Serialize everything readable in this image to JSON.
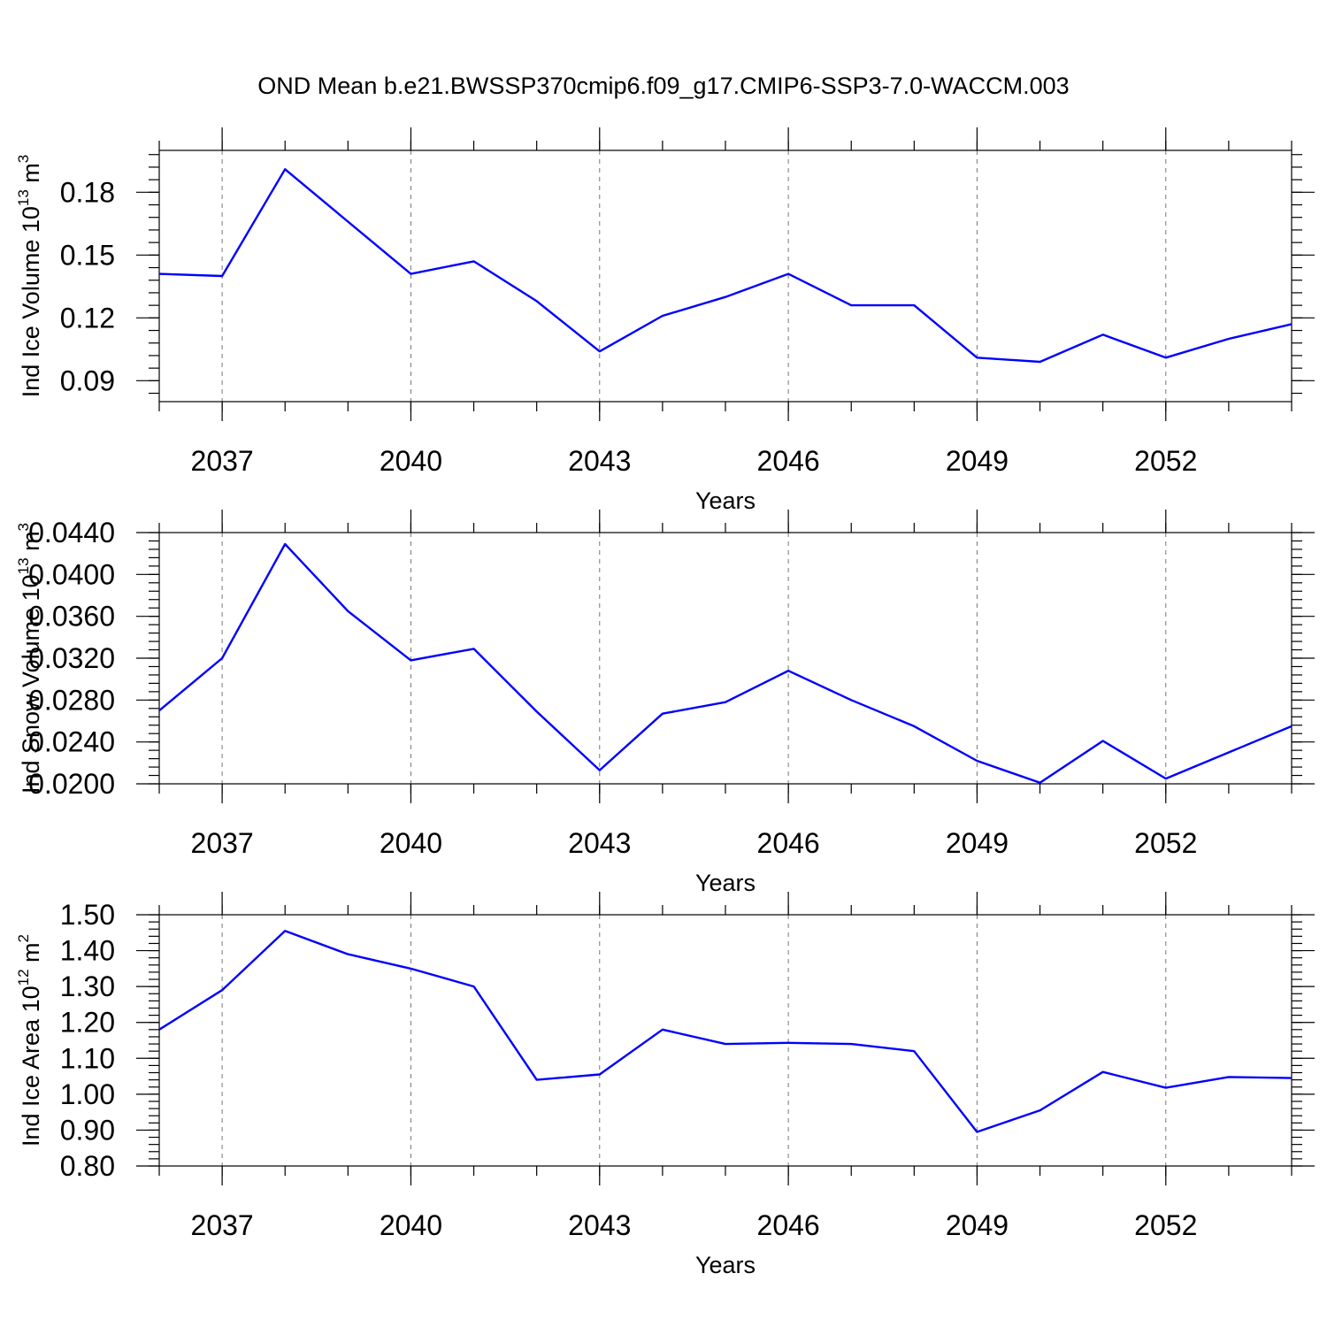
{
  "chart_data": {
    "title": "OND Mean b.e21.BWSSP370cmip6.f09_g17.CMIP6-SSP3-7.0-WACCM.003",
    "panels": [
      {
        "type": "line",
        "xlabel": "Years",
        "ylabel_text": "Ind Ice Volume 10",
        "ylabel_exp": "13",
        "ylabel_unit": " m",
        "ylabel_unit_exp": "3",
        "xlim": [
          2036,
          2054
        ],
        "ylim": [
          0.08,
          0.2
        ],
        "grid": true,
        "line_color": "#0000ff",
        "xticks": [
          2037,
          2040,
          2043,
          2046,
          2049,
          2052
        ],
        "xtick_labels": [
          "2037",
          "2040",
          "2043",
          "2046",
          "2049",
          "2052"
        ],
        "yticks": [
          0.09,
          0.12,
          0.15,
          0.18
        ],
        "ytick_labels": [
          "0.09",
          "0.12",
          "0.15",
          "0.18"
        ],
        "x": [
          2036,
          2037,
          2038,
          2039,
          2040,
          2041,
          2042,
          2043,
          2044,
          2045,
          2046,
          2047,
          2048,
          2049,
          2050,
          2051,
          2052,
          2053,
          2054
        ],
        "values": [
          0.141,
          0.14,
          0.191,
          0.166,
          0.141,
          0.147,
          0.128,
          0.104,
          0.121,
          0.13,
          0.141,
          0.126,
          0.126,
          0.101,
          0.099,
          0.112,
          0.101,
          0.11,
          0.117
        ]
      },
      {
        "type": "line",
        "xlabel": "Years",
        "ylabel_text": "Ind Snow Volume 10",
        "ylabel_exp": "13",
        "ylabel_unit": " m",
        "ylabel_unit_exp": "3",
        "xlim": [
          2036,
          2054
        ],
        "ylim": [
          0.02,
          0.044
        ],
        "grid": true,
        "line_color": "#0000ff",
        "xticks": [
          2037,
          2040,
          2043,
          2046,
          2049,
          2052
        ],
        "xtick_labels": [
          "2037",
          "2040",
          "2043",
          "2046",
          "2049",
          "2052"
        ],
        "yticks": [
          0.02,
          0.024,
          0.028,
          0.032,
          0.036,
          0.04,
          0.044
        ],
        "ytick_labels": [
          "0.0200",
          "0.0240",
          "0.0280",
          "0.0320",
          "0.0360",
          "0.0400",
          "0.0440"
        ],
        "x": [
          2036,
          2037,
          2038,
          2039,
          2040,
          2041,
          2042,
          2043,
          2044,
          2045,
          2046,
          2047,
          2048,
          2049,
          2050,
          2051,
          2052,
          2053,
          2054
        ],
        "values": [
          0.027,
          0.032,
          0.0429,
          0.0365,
          0.0318,
          0.0329,
          0.0269,
          0.0213,
          0.0267,
          0.0278,
          0.0308,
          0.028,
          0.0255,
          0.0222,
          0.0201,
          0.0241,
          0.0205,
          0.023,
          0.0255
        ]
      },
      {
        "type": "line",
        "xlabel": "Years",
        "ylabel_text": "Ind Ice Area 10",
        "ylabel_exp": "12",
        "ylabel_unit": " m",
        "ylabel_unit_exp": "2",
        "xlim": [
          2036,
          2054
        ],
        "ylim": [
          0.8,
          1.5
        ],
        "grid": true,
        "line_color": "#0000ff",
        "xticks": [
          2037,
          2040,
          2043,
          2046,
          2049,
          2052
        ],
        "xtick_labels": [
          "2037",
          "2040",
          "2043",
          "2046",
          "2049",
          "2052"
        ],
        "yticks": [
          0.8,
          0.9,
          1.0,
          1.1,
          1.2,
          1.3,
          1.4,
          1.5
        ],
        "ytick_labels": [
          "0.80",
          "0.90",
          "1.00",
          "1.10",
          "1.20",
          "1.30",
          "1.40",
          "1.50"
        ],
        "x": [
          2036,
          2037,
          2038,
          2039,
          2040,
          2041,
          2042,
          2043,
          2044,
          2045,
          2046,
          2047,
          2048,
          2049,
          2050,
          2051,
          2052,
          2053,
          2054
        ],
        "values": [
          1.18,
          1.29,
          1.455,
          1.39,
          1.35,
          1.3,
          1.04,
          1.055,
          1.18,
          1.14,
          1.143,
          1.14,
          1.12,
          0.895,
          0.955,
          1.062,
          1.018,
          1.048,
          1.045
        ]
      }
    ]
  }
}
